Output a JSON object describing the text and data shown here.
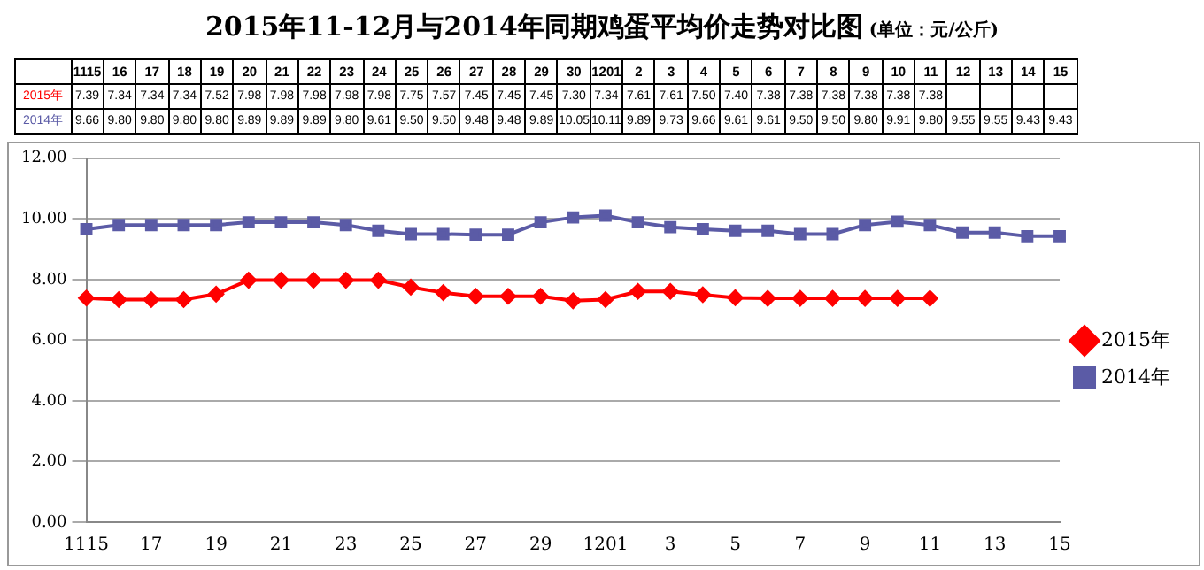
{
  "chart_data": {
    "type": "line",
    "title": "2015年11-12月与2014年同期鸡蛋平均价走势对比图",
    "subtitle": "(单位：元/公斤)",
    "categories": [
      "1115",
      "16",
      "17",
      "18",
      "19",
      "20",
      "21",
      "22",
      "23",
      "24",
      "25",
      "26",
      "27",
      "28",
      "29",
      "30",
      "1201",
      "2",
      "3",
      "4",
      "5",
      "6",
      "7",
      "8",
      "9",
      "10",
      "11",
      "12",
      "13",
      "14",
      "15"
    ],
    "series": [
      {
        "name": "2015年",
        "color": "#ff0000",
        "marker": "diamond",
        "values": [
          7.39,
          7.34,
          7.34,
          7.34,
          7.52,
          7.98,
          7.98,
          7.98,
          7.98,
          7.98,
          7.75,
          7.57,
          7.45,
          7.45,
          7.45,
          7.3,
          7.34,
          7.61,
          7.61,
          7.5,
          7.4,
          7.38,
          7.38,
          7.38,
          7.38,
          7.38,
          7.38,
          null,
          null,
          null,
          null
        ],
        "value_labels": [
          "7.39",
          "7.34",
          "7.34",
          "7.34",
          "7.52",
          "7.98",
          "7.98",
          "7.98",
          "7.98",
          "7.98",
          "7.75",
          "7.57",
          "7.45",
          "7.45",
          "7.45",
          "7.30",
          "7.34",
          "7.61",
          "7.61",
          "7.50",
          "7.40",
          "7.38",
          "7.38",
          "7.38",
          "7.38",
          "7.38",
          "7.38",
          null,
          null,
          null,
          null
        ]
      },
      {
        "name": "2014年",
        "color": "#5b5ba6",
        "marker": "square",
        "values": [
          9.66,
          9.8,
          9.8,
          9.8,
          9.8,
          9.89,
          9.89,
          9.89,
          9.8,
          9.61,
          9.5,
          9.5,
          9.48,
          9.48,
          9.89,
          10.05,
          10.11,
          9.89,
          9.73,
          9.66,
          9.61,
          9.61,
          9.5,
          9.5,
          9.8,
          9.91,
          9.8,
          9.55,
          9.55,
          9.43,
          9.43
        ],
        "value_labels": [
          "9.66",
          "9.80",
          "9.80",
          "9.80",
          "9.80",
          "9.89",
          "9.89",
          "9.89",
          "9.80",
          "9.61",
          "9.50",
          "9.50",
          "9.48",
          "9.48",
          "9.89",
          "10.05",
          "10.11",
          "9.89",
          "9.73",
          "9.66",
          "9.61",
          "9.61",
          "9.50",
          "9.50",
          "9.80",
          "9.91",
          "9.80",
          "9.55",
          "9.55",
          "9.43",
          "9.43"
        ]
      }
    ],
    "ylim": [
      0,
      12
    ],
    "yticks": [
      {
        "value": 0,
        "label": "0.00"
      },
      {
        "value": 2,
        "label": "2.00"
      },
      {
        "value": 4,
        "label": "4.00"
      },
      {
        "value": 6,
        "label": "6.00"
      },
      {
        "value": 8,
        "label": "8.00"
      },
      {
        "value": 10,
        "label": "10.00"
      },
      {
        "value": 12,
        "label": "12.00"
      }
    ],
    "grid": "y",
    "legend": "right",
    "line_style": "solid"
  }
}
